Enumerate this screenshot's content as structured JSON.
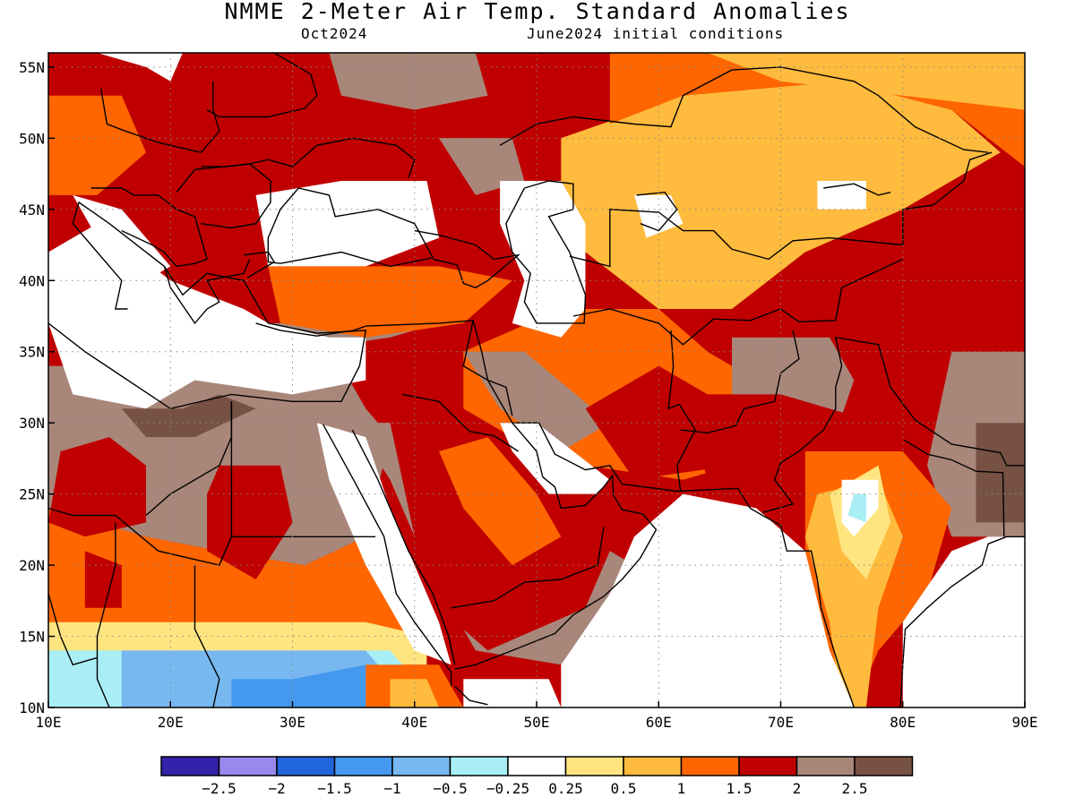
{
  "title": "NMME 2-Meter Air Temp. Standard Anomalies",
  "subtitle_left": "Oct2024",
  "subtitle_right": "June2024 initial conditions",
  "map": {
    "lon_range": [
      10,
      90
    ],
    "lat_range": [
      10,
      56
    ],
    "lon_ticks": [
      10,
      20,
      30,
      40,
      50,
      60,
      70,
      80,
      90
    ],
    "lat_ticks": [
      10,
      15,
      20,
      25,
      30,
      35,
      40,
      45,
      50,
      55
    ],
    "lon_labels": [
      "10E",
      "20E",
      "30E",
      "40E",
      "50E",
      "60E",
      "70E",
      "80E",
      "90E"
    ],
    "lat_labels": [
      "10N",
      "15N",
      "20N",
      "25N",
      "30N",
      "35N",
      "40N",
      "45N",
      "50N",
      "55N"
    ],
    "grid": "dotted"
  },
  "colorbar": {
    "colors": [
      "#3322aa",
      "#9988ee",
      "#2266dd",
      "#4499ee",
      "#77b8f0",
      "#aaeef5",
      "#ffffff",
      "#ffe580",
      "#ffbb3d",
      "#ff6600",
      "#c00000",
      "#a8877a",
      "#775244"
    ],
    "labels": [
      "-2.5",
      "-2",
      "-1.5",
      "-1",
      "-0.5",
      "-0.25",
      "0.25",
      "0.5",
      "1",
      "1.5",
      "2",
      "2.5"
    ]
  }
}
